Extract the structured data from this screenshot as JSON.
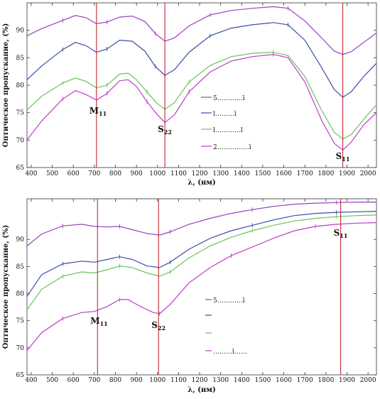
{
  "colors": {
    "purple": "#9b3fc0",
    "blue": "#3b4ea8",
    "green": "#67c45a",
    "magenta": "#c03cc8",
    "marker": "#c0282e",
    "axis": "#333333"
  },
  "chart_data": [
    {
      "type": "line",
      "xlabel": "λ, (нм)",
      "ylabel": "Оптическое пропускание, (%)",
      "xlim": [
        380,
        2040
      ],
      "ylim": [
        65,
        95
      ],
      "x_ticks": [
        "400",
        "500",
        "600",
        "700",
        "800",
        "900",
        "1000",
        "1100",
        "1200",
        "1300",
        "1400",
        "1500",
        "1600",
        "1700",
        "1800",
        "1900",
        "2000"
      ],
      "y_ticks": [
        "65",
        "70",
        "75",
        "80",
        "85",
        "90"
      ],
      "peak_markers": [
        {
          "label": "M11",
          "main": "M",
          "sub": "11",
          "x": 710
        },
        {
          "label": "S22",
          "main": "S",
          "sub": "22",
          "x": 1035
        },
        {
          "label": "S11",
          "main": "S",
          "sub": "11",
          "x": 1880
        }
      ],
      "legend": {
        "placement": "lower-center",
        "entries": [
          "5…………ī",
          "l………ī",
          "l…………l",
          "2……………ī"
        ]
      },
      "series": [
        {
          "color": "purple",
          "points": [
            [
              380,
              89.0
            ],
            [
              450,
              90.3
            ],
            [
              550,
              91.8
            ],
            [
              610,
              92.7
            ],
            [
              660,
              92.3
            ],
            [
              710,
              91.2
            ],
            [
              760,
              91.5
            ],
            [
              820,
              92.4
            ],
            [
              880,
              92.6
            ],
            [
              940,
              91.6
            ],
            [
              990,
              89.4
            ],
            [
              1035,
              88.0
            ],
            [
              1080,
              88.6
            ],
            [
              1150,
              90.8
            ],
            [
              1250,
              92.8
            ],
            [
              1350,
              93.6
            ],
            [
              1450,
              94.0
            ],
            [
              1550,
              94.3
            ],
            [
              1620,
              94.0
            ],
            [
              1700,
              91.7
            ],
            [
              1780,
              88.6
            ],
            [
              1840,
              86.2
            ],
            [
              1880,
              85.6
            ],
            [
              1920,
              86.1
            ],
            [
              1980,
              87.8
            ],
            [
              2040,
              89.5
            ]
          ]
        },
        {
          "color": "blue",
          "points": [
            [
              380,
              81.0
            ],
            [
              450,
              83.5
            ],
            [
              550,
              86.5
            ],
            [
              610,
              87.8
            ],
            [
              660,
              87.2
            ],
            [
              710,
              86.0
            ],
            [
              760,
              86.6
            ],
            [
              820,
              88.2
            ],
            [
              880,
              88.0
            ],
            [
              940,
              86.2
            ],
            [
              990,
              83.4
            ],
            [
              1035,
              81.8
            ],
            [
              1080,
              82.8
            ],
            [
              1150,
              86.0
            ],
            [
              1250,
              89.0
            ],
            [
              1350,
              90.4
            ],
            [
              1450,
              91.0
            ],
            [
              1550,
              91.4
            ],
            [
              1620,
              91.0
            ],
            [
              1700,
              88.2
            ],
            [
              1780,
              83.2
            ],
            [
              1840,
              79.2
            ],
            [
              1880,
              77.8
            ],
            [
              1920,
              78.8
            ],
            [
              1980,
              81.6
            ],
            [
              2040,
              84.0
            ]
          ]
        },
        {
          "color": "green",
          "points": [
            [
              380,
              75.5
            ],
            [
              450,
              78.0
            ],
            [
              550,
              80.4
            ],
            [
              610,
              81.3
            ],
            [
              660,
              80.7
            ],
            [
              710,
              79.5
            ],
            [
              760,
              80.0
            ],
            [
              820,
              82.0
            ],
            [
              860,
              82.2
            ],
            [
              900,
              81.0
            ],
            [
              950,
              78.8
            ],
            [
              1000,
              76.6
            ],
            [
              1035,
              75.6
            ],
            [
              1080,
              76.8
            ],
            [
              1150,
              80.6
            ],
            [
              1250,
              83.6
            ],
            [
              1350,
              85.2
            ],
            [
              1450,
              85.8
            ],
            [
              1550,
              86.0
            ],
            [
              1620,
              85.4
            ],
            [
              1700,
              81.6
            ],
            [
              1780,
              75.4
            ],
            [
              1840,
              71.4
            ],
            [
              1880,
              70.2
            ],
            [
              1920,
              71.0
            ],
            [
              1980,
              73.8
            ],
            [
              2040,
              76.4
            ]
          ]
        },
        {
          "color": "magenta",
          "points": [
            [
              380,
              70.0
            ],
            [
              450,
              73.5
            ],
            [
              550,
              77.5
            ],
            [
              610,
              79.0
            ],
            [
              660,
              78.3
            ],
            [
              710,
              77.3
            ],
            [
              760,
              78.5
            ],
            [
              820,
              80.8
            ],
            [
              860,
              81.0
            ],
            [
              900,
              79.8
            ],
            [
              950,
              77.0
            ],
            [
              1000,
              74.6
            ],
            [
              1035,
              73.2
            ],
            [
              1080,
              74.6
            ],
            [
              1150,
              78.8
            ],
            [
              1250,
              82.4
            ],
            [
              1350,
              84.4
            ],
            [
              1450,
              85.2
            ],
            [
              1550,
              85.6
            ],
            [
              1620,
              85.0
            ],
            [
              1700,
              80.6
            ],
            [
              1780,
              73.6
            ],
            [
              1840,
              69.4
            ],
            [
              1880,
              68.2
            ],
            [
              1920,
              69.6
            ],
            [
              1980,
              72.8
            ],
            [
              2040,
              75.0
            ]
          ]
        }
      ]
    },
    {
      "type": "line",
      "xlabel": "λ, (нм)",
      "ylabel": "Оптическое пропускание, (%)",
      "xlim": [
        380,
        2040
      ],
      "ylim": [
        65,
        97.5
      ],
      "x_ticks": [
        "400",
        "500",
        "600",
        "700",
        "800",
        "900",
        "1000",
        "1100",
        "1200",
        "1300",
        "1400",
        "1500",
        "1600",
        "1700",
        "1800",
        "1900",
        "2000"
      ],
      "y_ticks": [
        "65",
        "70",
        "75",
        "80",
        "85",
        "90"
      ],
      "peak_markers": [
        {
          "label": "M11",
          "main": "M",
          "sub": "11",
          "x": 715
        },
        {
          "label": "S22",
          "main": "S",
          "sub": "22",
          "x": 1005
        },
        {
          "label": "S11",
          "main": "S",
          "sub": "11",
          "x": 1870
        }
      ],
      "legend": {
        "placement": "lower-right",
        "entries": [
          "5…………ī",
          "",
          "",
          "………ī……"
        ]
      },
      "series": [
        {
          "color": "purple",
          "points": [
            [
              380,
              88.8
            ],
            [
              450,
              91.0
            ],
            [
              550,
              92.5
            ],
            [
              640,
              92.8
            ],
            [
              700,
              92.4
            ],
            [
              760,
              92.3
            ],
            [
              820,
              92.4
            ],
            [
              880,
              91.8
            ],
            [
              950,
              91.1
            ],
            [
              1010,
              90.8
            ],
            [
              1060,
              91.4
            ],
            [
              1150,
              92.8
            ],
            [
              1250,
              93.9
            ],
            [
              1350,
              94.8
            ],
            [
              1450,
              95.5
            ],
            [
              1550,
              96.1
            ],
            [
              1650,
              96.5
            ],
            [
              1750,
              96.7
            ],
            [
              1850,
              96.8
            ],
            [
              1950,
              96.9
            ],
            [
              2040,
              96.9
            ]
          ]
        },
        {
          "color": "blue",
          "points": [
            [
              380,
              79.5
            ],
            [
              450,
              83.5
            ],
            [
              550,
              85.5
            ],
            [
              640,
              86.0
            ],
            [
              700,
              85.8
            ],
            [
              760,
              86.3
            ],
            [
              820,
              86.8
            ],
            [
              880,
              86.3
            ],
            [
              950,
              85.1
            ],
            [
              1010,
              84.8
            ],
            [
              1060,
              85.8
            ],
            [
              1150,
              88.2
            ],
            [
              1250,
              90.2
            ],
            [
              1350,
              91.6
            ],
            [
              1450,
              92.6
            ],
            [
              1550,
              93.6
            ],
            [
              1650,
              94.4
            ],
            [
              1750,
              94.8
            ],
            [
              1850,
              95.0
            ],
            [
              1950,
              95.1
            ],
            [
              2040,
              95.2
            ]
          ]
        },
        {
          "color": "green",
          "points": [
            [
              380,
              77.0
            ],
            [
              450,
              80.8
            ],
            [
              550,
              83.2
            ],
            [
              640,
              84.0
            ],
            [
              700,
              83.8
            ],
            [
              760,
              84.4
            ],
            [
              820,
              85.1
            ],
            [
              880,
              84.8
            ],
            [
              950,
              83.8
            ],
            [
              1010,
              83.2
            ],
            [
              1060,
              84.0
            ],
            [
              1150,
              86.6
            ],
            [
              1250,
              88.8
            ],
            [
              1350,
              90.4
            ],
            [
              1450,
              91.6
            ],
            [
              1550,
              92.6
            ],
            [
              1650,
              93.4
            ],
            [
              1750,
              93.9
            ],
            [
              1850,
              94.2
            ],
            [
              1950,
              94.4
            ],
            [
              2040,
              94.5
            ]
          ]
        },
        {
          "color": "magenta",
          "points": [
            [
              380,
              69.5
            ],
            [
              450,
              72.8
            ],
            [
              550,
              75.4
            ],
            [
              640,
              76.5
            ],
            [
              700,
              76.7
            ],
            [
              760,
              77.6
            ],
            [
              820,
              78.9
            ],
            [
              860,
              78.9
            ],
            [
              920,
              77.6
            ],
            [
              980,
              76.5
            ],
            [
              1010,
              76.3
            ],
            [
              1060,
              78.0
            ],
            [
              1150,
              82.0
            ],
            [
              1250,
              84.8
            ],
            [
              1350,
              87.0
            ],
            [
              1450,
              88.6
            ],
            [
              1550,
              90.2
            ],
            [
              1650,
              91.6
            ],
            [
              1750,
              92.4
            ],
            [
              1850,
              92.8
            ],
            [
              1950,
              93.0
            ],
            [
              2040,
              93.1
            ]
          ]
        }
      ]
    }
  ]
}
